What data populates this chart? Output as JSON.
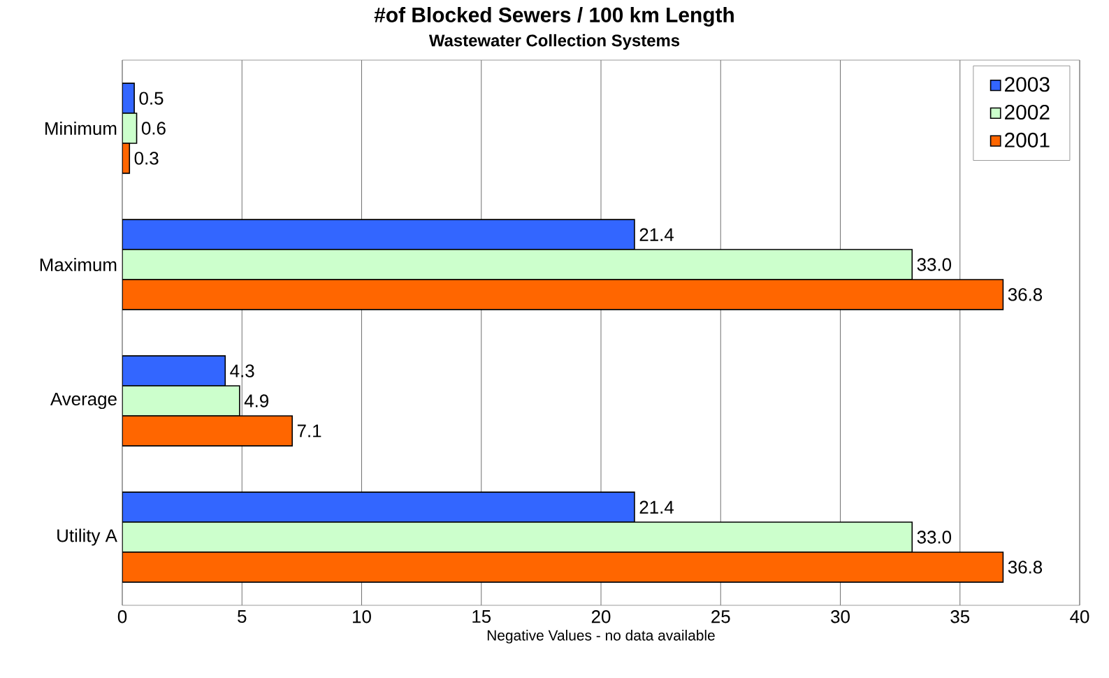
{
  "chart_data": {
    "type": "bar",
    "orientation": "horizontal",
    "title": "#of Blocked Sewers / 100 km Length",
    "subtitle": "Wastewater Collection Systems",
    "xlabel": "Negative Values - no data available",
    "categories": [
      "Minimum",
      "Maximum",
      "Average",
      "Utility A"
    ],
    "series": [
      {
        "name": "2003",
        "color": "#3366ff",
        "values": [
          0.5,
          21.4,
          4.3,
          21.4
        ],
        "value_labels": [
          "0.5",
          "21.4",
          "4.3",
          "21.4"
        ]
      },
      {
        "name": "2002",
        "color": "#ccffcc",
        "values": [
          0.6,
          33.0,
          4.9,
          33.0
        ],
        "value_labels": [
          "0.6",
          "33.0",
          "4.9",
          "33.0"
        ]
      },
      {
        "name": "2001",
        "color": "#ff6600",
        "values": [
          0.3,
          36.8,
          7.1,
          36.8
        ],
        "value_labels": [
          "0.3",
          "36.8",
          "7.1",
          "36.8"
        ]
      }
    ],
    "xlim": [
      0,
      40
    ],
    "xticks": [
      0,
      5,
      10,
      15,
      20,
      25,
      30,
      35,
      40
    ],
    "grid": "x",
    "legend": "top right"
  }
}
